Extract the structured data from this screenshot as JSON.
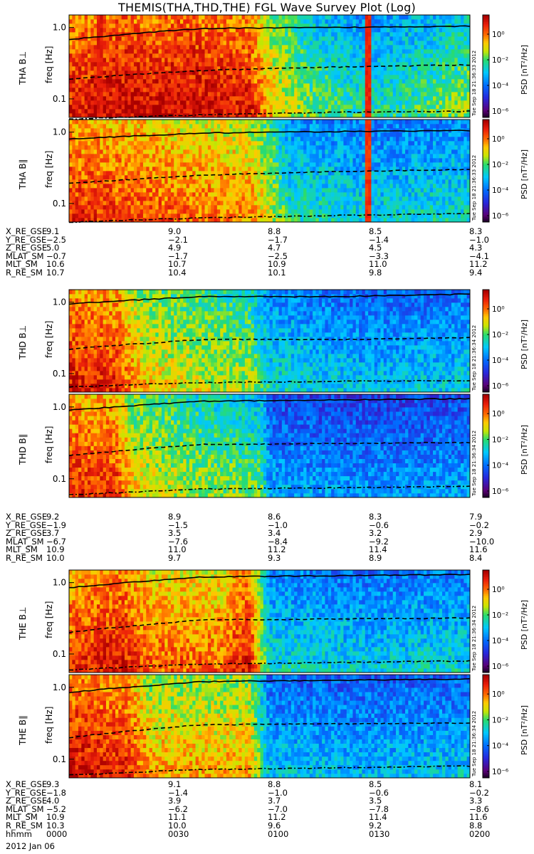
{
  "title": "THEMIS(THA,THD,THE) FGL Wave Survey Plot (Log)",
  "colorbar_label": "PSD [nT²/Hz]",
  "colorbar_ticks": [
    "10⁰",
    "10⁻²",
    "10⁻⁴",
    "10⁻⁶"
  ],
  "yaxis_label": "freq [Hz]",
  "freq_ticks": [
    "1.0",
    "0.1"
  ],
  "panels": [
    {
      "probe_label": "THA B⊥",
      "stamp": "Tue Sep 18 21:36:33 2012"
    },
    {
      "probe_label": "THA B∥",
      "stamp": "Tue Sep 18 21:36:33 2012"
    },
    {
      "probe_label": "THD B⊥",
      "stamp": "Tue Sep 18 21:36:34 2012"
    },
    {
      "probe_label": "THD B∥",
      "stamp": "Tue Sep 18 21:36:34 2012"
    },
    {
      "probe_label": "THE B⊥",
      "stamp": "Tue Sep 18 21:36:34 2012"
    },
    {
      "probe_label": "THE B∥",
      "stamp": "Tue Sep 18 21:36:34 2012"
    }
  ],
  "orbit_blocks": [
    {
      "probe": "THA",
      "rows": [
        {
          "label": "X_RE_GSE",
          "values": [
            "9.1",
            "9.0",
            "8.8",
            "8.5",
            "8.3"
          ]
        },
        {
          "label": "Y_RE_GSE",
          "values": [
            "−2.5",
            "−2.1",
            "−1.7",
            "−1.4",
            "−1.0"
          ]
        },
        {
          "label": "Z_RE_GSE",
          "values": [
            "5.0",
            "4.9",
            "4.7",
            "4.5",
            "4.3"
          ]
        },
        {
          "label": "MLAT_SM",
          "values": [
            "−0.7",
            "−1.7",
            "−2.5",
            "−3.3",
            "−4.1"
          ]
        },
        {
          "label": "MLT_SM",
          "values": [
            "10.6",
            "10.7",
            "10.9",
            "11.0",
            "11.2"
          ]
        },
        {
          "label": "R_RE_SM",
          "values": [
            "10.7",
            "10.4",
            "10.1",
            "9.8",
            "9.4"
          ]
        }
      ]
    },
    {
      "probe": "THD",
      "rows": [
        {
          "label": "X_RE_GSE",
          "values": [
            "9.2",
            "8.9",
            "8.6",
            "8.3",
            "7.9"
          ]
        },
        {
          "label": "Y_RE_GSE",
          "values": [
            "−1.9",
            "−1.5",
            "−1.0",
            "−0.6",
            "−0.2"
          ]
        },
        {
          "label": "Z_RE_GSE",
          "values": [
            "3.7",
            "3.5",
            "3.4",
            "3.2",
            "2.9"
          ]
        },
        {
          "label": "MLAT_SM",
          "values": [
            "−6.7",
            "−7.6",
            "−8.4",
            "−9.2",
            "−10.0"
          ]
        },
        {
          "label": "MLT_SM",
          "values": [
            "10.9",
            "11.0",
            "11.2",
            "11.4",
            "11.6"
          ]
        },
        {
          "label": "R_RE_SM",
          "values": [
            "10.0",
            "9.7",
            "9.3",
            "8.9",
            "8.4"
          ]
        }
      ]
    },
    {
      "probe": "THE",
      "rows": [
        {
          "label": "X_RE_GSE",
          "values": [
            "9.3",
            "9.1",
            "8.8",
            "8.5",
            "8.1"
          ]
        },
        {
          "label": "Y_RE_GSE",
          "values": [
            "−1.8",
            "−1.4",
            "−1.0",
            "−0.6",
            "−0.2"
          ]
        },
        {
          "label": "Z_RE_GSE",
          "values": [
            "4.0",
            "3.9",
            "3.7",
            "3.5",
            "3.3"
          ]
        },
        {
          "label": "MLAT_SM",
          "values": [
            "−5.2",
            "−6.2",
            "−7.0",
            "−7.8",
            "−8.6"
          ]
        },
        {
          "label": "MLT_SM",
          "values": [
            "10.9",
            "11.1",
            "11.2",
            "11.4",
            "11.6"
          ]
        },
        {
          "label": "R_RE_SM",
          "values": [
            "10.3",
            "10.0",
            "9.6",
            "9.2",
            "8.8"
          ]
        },
        {
          "label": "hhmm",
          "values": [
            "0000",
            "0030",
            "0100",
            "0130",
            "0200"
          ]
        }
      ]
    }
  ],
  "date_label": "2012 Jan 06",
  "chart_data": {
    "type": "heatmap",
    "title": "THEMIS(THA,THD,THE) FGL Wave Survey Plot (Log)",
    "x": "time (hhmm)",
    "x_ticks": [
      "0000",
      "0030",
      "0100",
      "0130",
      "0200"
    ],
    "ylabel": "freq [Hz]",
    "yscale": "log",
    "ylim_hz": [
      0.055,
      1.5
    ],
    "colorbar": {
      "label": "PSD [nT²/Hz]",
      "scale": "log",
      "range_log10": [
        -6.5,
        1.5
      ]
    },
    "overlay_lines": [
      {
        "style": "solid",
        "meaning": "upper gyro line"
      },
      {
        "style": "dashed",
        "meaning": "middle line"
      },
      {
        "style": "dash-dot",
        "meaning": "lower line"
      }
    ],
    "panels": [
      {
        "name": "THA B⊥",
        "knots": [
          [
            0,
            0.5
          ],
          [
            0.14,
            0.9
          ],
          [
            0.17,
            0.75
          ],
          [
            0.3,
            0.85
          ],
          [
            0.45,
            0.55
          ],
          [
            0.5,
            -0.9
          ],
          [
            0.6,
            -2.2
          ],
          [
            0.75,
            -2.9
          ],
          [
            0.85,
            -2.6
          ],
          [
            1,
            -2.0
          ]
        ],
        "events": [
          [
            0.08,
            0.9
          ],
          [
            0.745,
            0.75
          ]
        ],
        "lines": {
          "solid": [
            0.68,
            0.97,
            1.0,
            1.05
          ],
          "dashed": [
            0.19,
            0.25,
            0.28,
            0.3
          ],
          "dashdot": [
            0.052,
            0.06,
            0.065,
            0.067
          ]
        }
      },
      {
        "name": "THA B∥",
        "knots": [
          [
            0,
            0.3
          ],
          [
            0.15,
            0.1
          ],
          [
            0.3,
            -0.3
          ],
          [
            0.45,
            -0.6
          ],
          [
            0.5,
            -1.5
          ],
          [
            0.55,
            -2.8
          ],
          [
            0.75,
            -3.2
          ],
          [
            1,
            -3.0
          ]
        ],
        "events": [
          [
            0.745,
            0.6
          ]
        ],
        "lines": {
          "solid": [
            0.8,
            0.97,
            1.02,
            1.05
          ],
          "dashed": [
            0.19,
            0.25,
            0.28,
            0.3
          ],
          "dashdot": [
            0.055,
            0.063,
            0.068,
            0.072
          ]
        }
      },
      {
        "name": "THD B⊥",
        "knots": [
          [
            0,
            0.5
          ],
          [
            0.12,
            0.3
          ],
          [
            0.18,
            -1.0
          ],
          [
            0.3,
            -1.5
          ],
          [
            0.45,
            -1.8
          ],
          [
            0.5,
            -3.0
          ],
          [
            0.75,
            -3.5
          ],
          [
            1,
            -3.3
          ]
        ],
        "events": [],
        "lines": {
          "solid": [
            0.95,
            1.2,
            1.2,
            1.3
          ],
          "dashed": [
            0.22,
            0.3,
            0.3,
            0.32
          ],
          "dashdot": [
            0.065,
            0.075,
            0.078,
            0.08
          ]
        }
      },
      {
        "name": "THD B∥",
        "knots": [
          [
            0,
            0.3
          ],
          [
            0.12,
            0.2
          ],
          [
            0.16,
            -1.2
          ],
          [
            0.3,
            -1.8
          ],
          [
            0.48,
            -2.4
          ],
          [
            0.5,
            -3.8
          ],
          [
            0.75,
            -4.0
          ],
          [
            1,
            -3.8
          ]
        ],
        "events": [],
        "lines": {
          "solid": [
            0.9,
            1.2,
            1.25,
            1.3
          ],
          "dashed": [
            0.21,
            0.3,
            0.31,
            0.32
          ],
          "dashdot": [
            0.06,
            0.072,
            0.075,
            0.078
          ]
        }
      },
      {
        "name": "THE B⊥",
        "knots": [
          [
            0,
            0.2
          ],
          [
            0.13,
            0.6
          ],
          [
            0.2,
            -0.2
          ],
          [
            0.38,
            -0.3
          ],
          [
            0.45,
            0.6
          ],
          [
            0.5,
            -3.0
          ],
          [
            0.75,
            -3.3
          ],
          [
            1,
            -3.1
          ]
        ],
        "events": [],
        "lines": {
          "solid": [
            0.85,
            1.2,
            1.25,
            1.3
          ],
          "dashed": [
            0.2,
            0.3,
            0.31,
            0.32
          ],
          "dashdot": [
            0.06,
            0.072,
            0.076,
            0.08
          ]
        }
      },
      {
        "name": "THE B∥",
        "knots": [
          [
            0,
            0.7
          ],
          [
            0.15,
            0.3
          ],
          [
            0.2,
            -0.8
          ],
          [
            0.38,
            -0.9
          ],
          [
            0.45,
            -0.8
          ],
          [
            0.5,
            -3.4
          ],
          [
            0.75,
            -3.6
          ],
          [
            1,
            -3.4
          ]
        ],
        "events": [],
        "lines": {
          "solid": [
            0.85,
            1.2,
            1.25,
            1.3
          ],
          "dashed": [
            0.2,
            0.3,
            0.31,
            0.32
          ],
          "dashdot": [
            0.06,
            0.072,
            0.076,
            0.08
          ]
        }
      }
    ]
  }
}
